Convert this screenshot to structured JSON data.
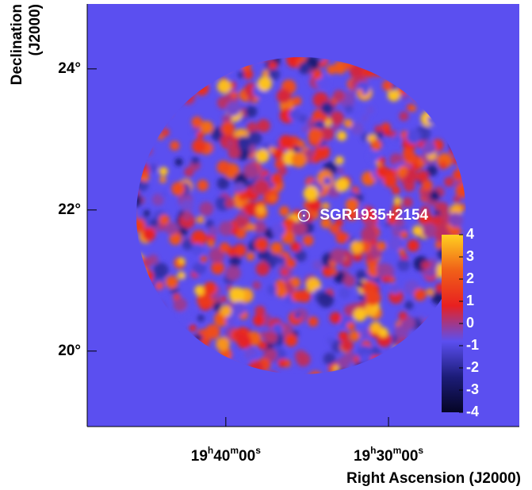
{
  "chart_data": {
    "type": "skymap",
    "xlabel": "Right Ascension (J2000)",
    "ylabel": [
      "Declination",
      "(J2000)"
    ],
    "xlim": [
      297.13,
      290.49
    ],
    "xticks": [
      {
        "value": 295,
        "label": "19h40m00s"
      },
      {
        "value": 292.5,
        "label": "19h30m00s"
      }
    ],
    "ylim": [
      18.93,
      24.92
    ],
    "yticks": [
      {
        "value": 20,
        "label": "20°"
      },
      {
        "value": 22,
        "label": "22°"
      },
      {
        "value": 24,
        "label": "24°"
      }
    ],
    "background": "#5b4ff0",
    "source": {
      "label": "SGR1935+2154",
      "ra": 293.8,
      "dec": 21.92
    },
    "zlim": [
      -4,
      4
    ],
    "zticks": [
      4,
      3,
      2,
      1,
      0,
      -1,
      -2,
      -3,
      -4
    ],
    "colormap": [
      "#050525",
      "#1c1c78",
      "#5b4ff0",
      "#e82020",
      "#f06018",
      "#ffd020"
    ]
  }
}
